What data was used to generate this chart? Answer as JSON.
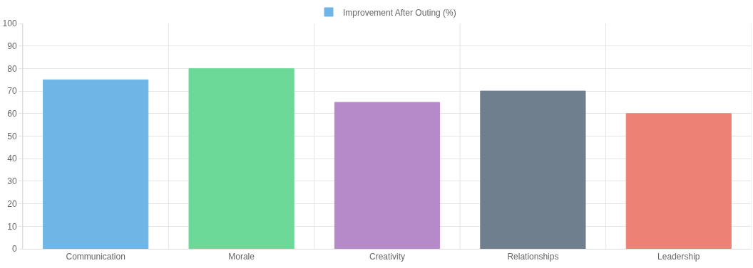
{
  "chart_data": {
    "type": "bar",
    "categories": [
      "Communication",
      "Morale",
      "Creativity",
      "Relationships",
      "Leadership"
    ],
    "series": [
      {
        "name": "Improvement After Outing (%)",
        "colors": [
          "#6fb5e5",
          "#6cd998",
          "#b689c9",
          "#707f8e",
          "#ee8175"
        ],
        "values": [
          75,
          80,
          65,
          70,
          60
        ]
      }
    ],
    "ylim": [
      0,
      100
    ],
    "yticks": [
      0,
      10,
      20,
      30,
      40,
      50,
      60,
      70,
      80,
      90,
      100
    ],
    "grid": true,
    "legend": "top"
  }
}
